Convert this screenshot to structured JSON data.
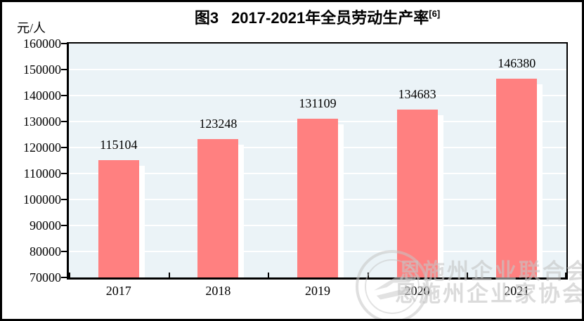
{
  "figure": {
    "title_prefix": "图3",
    "title_main": "2017-2021年全员劳动生产率",
    "title_superscript": "[6]",
    "unit_label": "元/人"
  },
  "chart_data": {
    "type": "bar",
    "title": "图3 2017-2021年全员劳动生产率[6]",
    "ylabel": "元/人",
    "xlabel": "",
    "categories": [
      "2017",
      "2018",
      "2019",
      "2020",
      "2021"
    ],
    "values": [
      115104,
      123248,
      131109,
      134683,
      146380
    ],
    "data_labels": [
      "115104",
      "123248",
      "131109",
      "134683",
      "146380"
    ],
    "ylim": [
      70000,
      160000
    ],
    "ytick_step": 10000,
    "ytick_labels_top_to_bottom": [
      "160000",
      "150000",
      "140000",
      "130000",
      "120000",
      "110000",
      "100000",
      "90000",
      "80000",
      "70000"
    ],
    "grid": "horizontal white gridlines on",
    "legend": "none",
    "bar_color": "#FF8080",
    "bar_shadow_color": "#FFFFFF",
    "plot_bg_color": "#EBF3F7",
    "axis_color": "#000000"
  },
  "watermark": {
    "line1": "恩施州企业联合会",
    "line2": "恩施州企业家协会",
    "logo": "enshi-enterprise-federation-logo",
    "color": "#C5C5C5"
  }
}
